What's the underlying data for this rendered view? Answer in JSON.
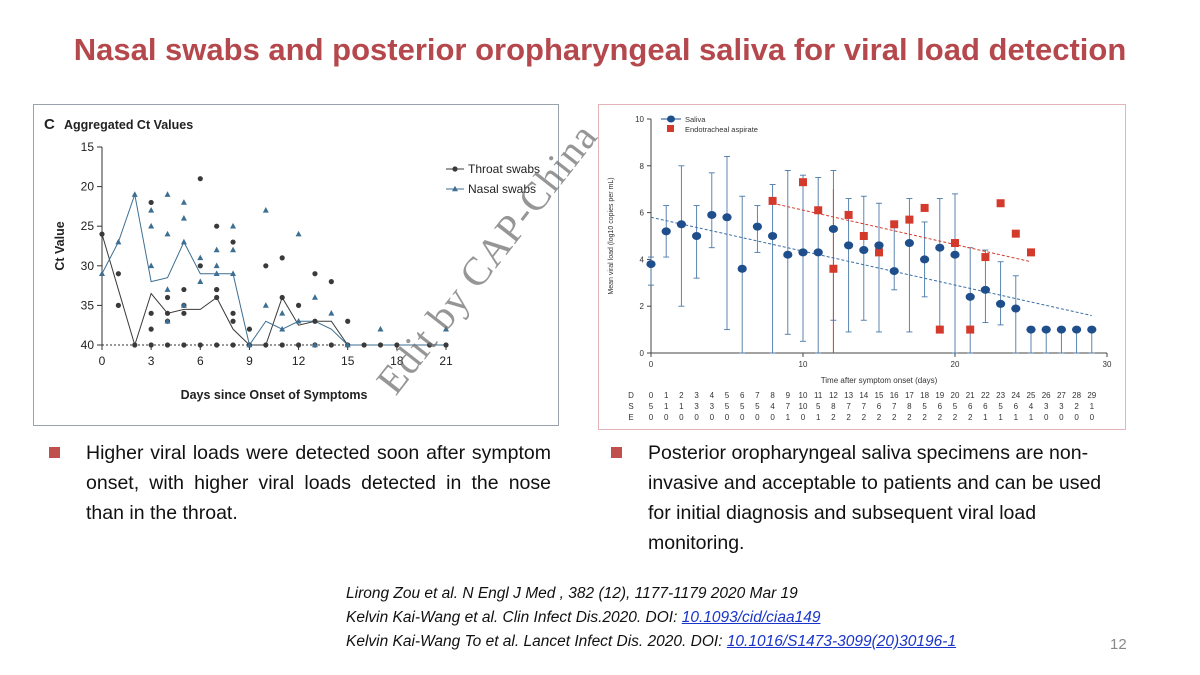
{
  "slide": {
    "title": "Nasal swabs and posterior oropharyngeal saliva for viral load detection",
    "page_number": "12",
    "watermark": "Edit by CAP-China"
  },
  "bullets": [
    {
      "text": "Higher viral loads were detected soon after symptom onset, with higher viral loads detected in the nose than in the throat."
    },
    {
      "text": "Posterior oropharyngeal saliva specimens are non-invasive and acceptable to patients and can be used for initial diagnosis and subsequent viral load monitoring."
    }
  ],
  "references": [
    {
      "text": "Lirong Zou et al. N Engl J Med , 382 (12), 1177-1179  2020 Mar 19",
      "link": ""
    },
    {
      "text": "Kelvin Kai-Wang et al. Clin Infect Dis.2020. DOI: ",
      "link": "10.1093/cid/ciaa149"
    },
    {
      "text": "Kelvin Kai-Wang To et al. Lancet Infect Dis. 2020. DOI: ",
      "link": "10.1016/S1473-3099(20)30196-1"
    }
  ],
  "colors": {
    "title": "#b5484c",
    "bullet": "#c0504d",
    "throat": "#3a3a3a",
    "nasal": "#3d6f92",
    "saliva": "#1f4e8c",
    "eta": "#d43a2c"
  },
  "chart_data": [
    {
      "type": "scatter",
      "panel_label": "C",
      "title": "Aggregated Ct Values",
      "xlabel": "Days since Onset of Symptoms",
      "ylabel": "Ct Value",
      "xlim": [
        0,
        21
      ],
      "ylim": [
        15,
        40
      ],
      "y_inverted": true,
      "xticks": [
        "0",
        "3",
        "6",
        "9",
        "12",
        "15",
        "18",
        "21"
      ],
      "yticks": [
        "15",
        "20",
        "25",
        "30",
        "35",
        "40"
      ],
      "legend_position": "top-right",
      "series": [
        {
          "name": "Throat swabs",
          "marker": "circle",
          "x": [
            0,
            1,
            1,
            2,
            3,
            3,
            3,
            3,
            4,
            4,
            4,
            4,
            5,
            5,
            5,
            5,
            6,
            6,
            6,
            7,
            7,
            7,
            7,
            7,
            8,
            8,
            8,
            8,
            9,
            9,
            10,
            10,
            11,
            11,
            11,
            12,
            12,
            13,
            13,
            13,
            14,
            14,
            15,
            15,
            16,
            17,
            18,
            20,
            21
          ],
          "y": [
            26,
            31,
            35,
            40,
            22,
            38,
            36,
            40,
            34,
            36,
            37,
            40,
            33,
            36,
            35,
            40,
            19,
            30,
            40,
            25,
            33,
            34,
            33,
            40,
            27,
            37,
            36,
            40,
            38,
            40,
            30,
            40,
            29,
            34,
            40,
            35,
            40,
            31,
            37,
            40,
            32,
            40,
            37,
            40,
            40,
            40,
            40,
            40,
            40
          ],
          "median_line_x": [
            0,
            1,
            2,
            3,
            4,
            5,
            6,
            7,
            8,
            9,
            10,
            11,
            12,
            13,
            14,
            15,
            16,
            17,
            18,
            19,
            20,
            21
          ],
          "median_line_y": [
            26,
            33,
            40,
            33.5,
            36,
            35.5,
            35.5,
            34,
            38,
            40,
            40,
            34,
            37.5,
            37,
            37,
            40,
            40,
            40,
            40,
            40,
            40,
            40
          ]
        },
        {
          "name": "Nasal swabs",
          "marker": "triangle",
          "x": [
            0,
            1,
            2,
            3,
            3,
            3,
            4,
            4,
            4,
            4,
            5,
            5,
            5,
            5,
            6,
            6,
            7,
            7,
            7,
            8,
            8,
            8,
            9,
            10,
            10,
            11,
            11,
            12,
            12,
            13,
            13,
            14,
            15,
            17,
            21
          ],
          "y": [
            31,
            27,
            21,
            23,
            25,
            30,
            21,
            26,
            33,
            37,
            22,
            24,
            27,
            35,
            29,
            32,
            28,
            30,
            31,
            25,
            28,
            31,
            40,
            23,
            35,
            36,
            38,
            26,
            37,
            34,
            40,
            36,
            40,
            38,
            38
          ],
          "median_line_x": [
            0,
            1,
            2,
            3,
            4,
            5,
            6,
            7,
            8,
            9,
            10,
            11,
            12,
            13,
            14,
            15,
            16,
            17,
            18,
            19,
            20,
            21
          ],
          "median_line_y": [
            31,
            27,
            21,
            32,
            31.5,
            27,
            31,
            31,
            31,
            40,
            37,
            38,
            37,
            37,
            38,
            40,
            40,
            40,
            40,
            40,
            40,
            40
          ]
        }
      ]
    },
    {
      "type": "scatter",
      "xlabel": "Time after symptom onset (days)",
      "ylabel": "Mean viral load (log10 copies per mL)",
      "xlim": [
        0,
        30
      ],
      "ylim": [
        0,
        10
      ],
      "xticks": [
        "0",
        "10",
        "20",
        "30"
      ],
      "yticks": [
        "0",
        "2",
        "4",
        "6",
        "8",
        "10"
      ],
      "legend_position": "top-left",
      "series": [
        {
          "name": "Saliva",
          "marker": "circle",
          "x": [
            0,
            1,
            2,
            3,
            4,
            5,
            6,
            7,
            8,
            9,
            10,
            11,
            12,
            13,
            14,
            15,
            16,
            17,
            18,
            19,
            20,
            21,
            22,
            23,
            24,
            25,
            26,
            27,
            28,
            29
          ],
          "y": [
            3.8,
            5.2,
            5.5,
            5.0,
            5.9,
            5.8,
            3.6,
            5.4,
            5.0,
            4.2,
            4.3,
            4.3,
            5.3,
            4.6,
            4.4,
            4.6,
            3.5,
            4.7,
            4.0,
            4.5,
            4.2,
            2.4,
            2.7,
            2.1,
            1.9,
            1.0,
            1.0,
            1.0,
            1.0,
            1.0
          ],
          "error_low": [
            2.9,
            4.1,
            2.0,
            3.2,
            4.5,
            1.0,
            0,
            4.3,
            0,
            0.8,
            0.5,
            0,
            1.4,
            0.9,
            1.4,
            0.9,
            2.7,
            0.9,
            2.4,
            0.9,
            0,
            0,
            1.3,
            1.2,
            0,
            0,
            0,
            0,
            0,
            0
          ],
          "error_high": [
            4.1,
            6.3,
            8.0,
            6.3,
            7.7,
            8.4,
            6.7,
            6.3,
            7.2,
            7.8,
            7.6,
            7.5,
            7.8,
            6.6,
            6.7,
            6.4,
            5.6,
            6.6,
            5.6,
            6.6,
            6.8,
            4.5,
            4.4,
            3.9,
            3.3,
            1.0,
            1.0,
            1.0,
            1.0,
            1.0
          ],
          "trend": {
            "x": [
              0,
              29
            ],
            "y": [
              5.8,
              1.6
            ]
          }
        },
        {
          "name": "Endotracheal aspirate",
          "marker": "square",
          "x": [
            8,
            10,
            11,
            12,
            13,
            14,
            15,
            16,
            17,
            18,
            19,
            20,
            21,
            22,
            23,
            24,
            25
          ],
          "y": [
            6.5,
            7.3,
            6.1,
            3.6,
            5.9,
            5.0,
            4.3,
            5.5,
            5.7,
            6.2,
            1.0,
            4.7,
            1.0,
            4.1,
            6.4,
            5.1,
            4.3
          ],
          "trend": {
            "x": [
              8,
              25
            ],
            "y": [
              6.4,
              3.9
            ]
          }
        }
      ],
      "red_vline_x": 12,
      "table": {
        "rows": [
          "D",
          "S",
          "E"
        ],
        "days": [
          "0",
          "1",
          "2",
          "3",
          "4",
          "5",
          "6",
          "7",
          "8",
          "9",
          "10",
          "11",
          "12",
          "13",
          "14",
          "15",
          "16",
          "17",
          "18",
          "19",
          "20",
          "21",
          "22",
          "23",
          "24",
          "25",
          "26",
          "27",
          "28",
          "29"
        ],
        "S": [
          "5",
          "1",
          "1",
          "3",
          "3",
          "5",
          "5",
          "5",
          "4",
          "7",
          "10",
          "5",
          "8",
          "7",
          "7",
          "6",
          "7",
          "8",
          "5",
          "6",
          "5",
          "6",
          "6",
          "5",
          "6",
          "4",
          "3",
          "3",
          "2",
          "1"
        ],
        "E": [
          "0",
          "0",
          "0",
          "0",
          "0",
          "0",
          "0",
          "0",
          "0",
          "1",
          "0",
          "1",
          "2",
          "2",
          "2",
          "2",
          "2",
          "2",
          "2",
          "2",
          "2",
          "2",
          "1",
          "1",
          "1",
          "1",
          "0",
          "0",
          "0",
          "0"
        ]
      }
    }
  ]
}
